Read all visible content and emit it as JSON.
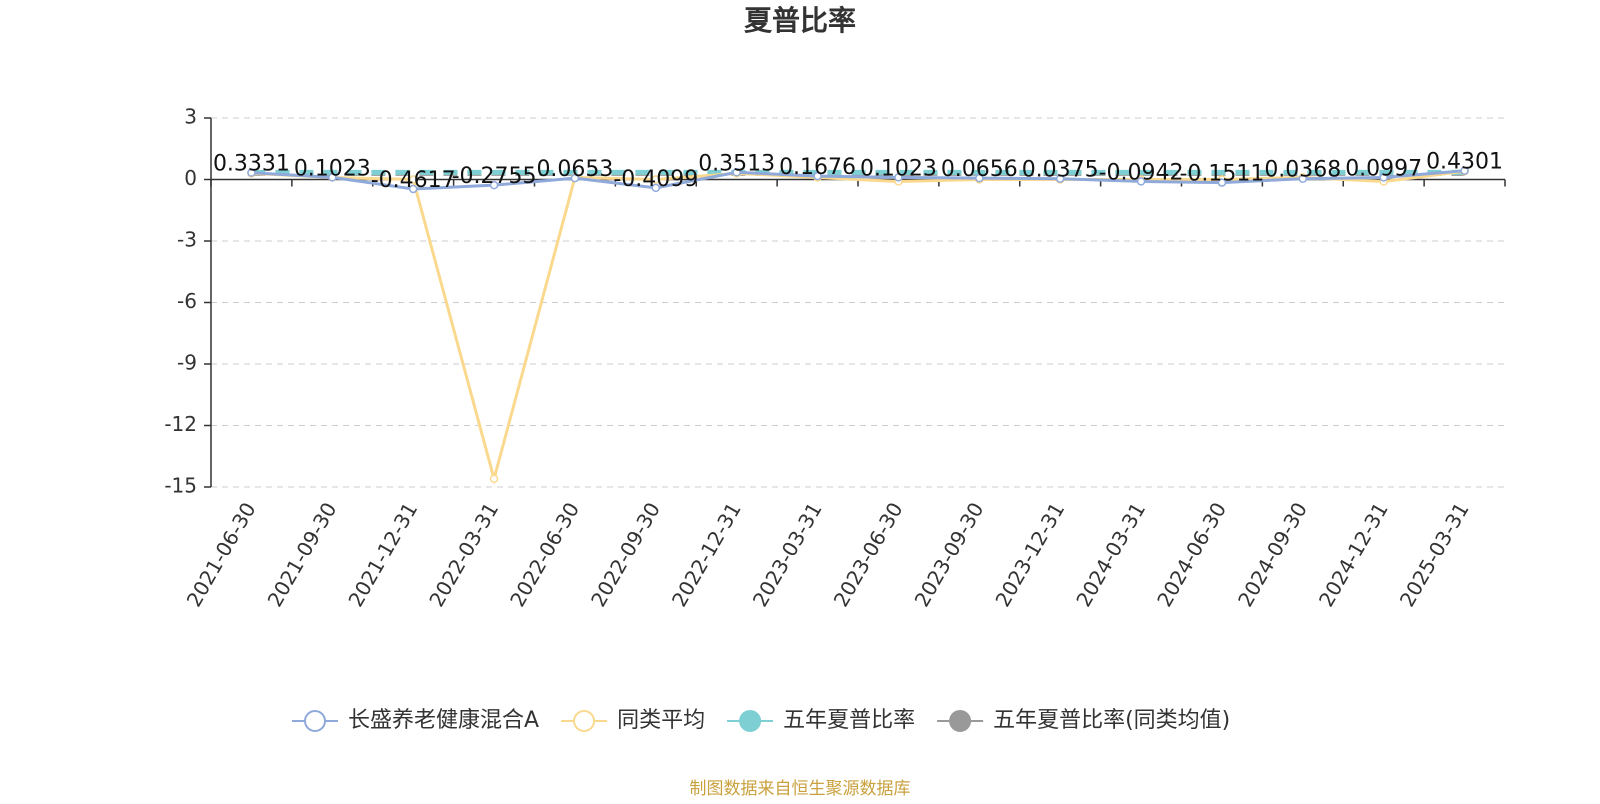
{
  "chart_data": {
    "type": "line",
    "title": "夏普比率",
    "categories": [
      "2021-06-30",
      "2021-09-30",
      "2021-12-31",
      "2022-03-31",
      "2022-06-30",
      "2022-09-30",
      "2022-12-31",
      "2023-03-31",
      "2023-06-30",
      "2023-09-30",
      "2023-12-31",
      "2024-03-31",
      "2024-06-30",
      "2024-09-30",
      "2024-12-31",
      "2025-03-31"
    ],
    "series": [
      {
        "name": "长盛养老健康混合A",
        "color": "#8fa9db",
        "values": [
          0.3331,
          0.1023,
          -0.4617,
          -0.2755,
          0.0653,
          -0.4099,
          0.3513,
          0.1676,
          0.1023,
          0.0656,
          0.0375,
          -0.0942,
          -0.1511,
          0.0368,
          0.0997,
          0.4301
        ]
      },
      {
        "name": "同类平均",
        "color": "#fad98f",
        "values": [
          0.3,
          0.1,
          0,
          -14.6,
          0.1,
          0,
          0.3,
          0.1,
          -0.1,
          0,
          0,
          0,
          0,
          0.1,
          -0.1,
          0.4
        ]
      },
      {
        "name": "五年夏普比率",
        "color": "#7ecfd4",
        "values": [
          0.35,
          0.35,
          0.35,
          0.35,
          0.35,
          0.35,
          0.35,
          0.35,
          0.35,
          0.35,
          0.35,
          0.35,
          0.35,
          0.35,
          0.35,
          0.35
        ]
      },
      {
        "name": "五年夏普比率(同类均值)",
        "color": "#999999",
        "values": [
          0.3,
          0.3,
          0.3,
          0.3,
          0.3,
          0.3,
          0.3,
          0.3,
          0.3,
          0.3,
          0.3,
          0.3,
          0.3,
          0.3,
          0.3,
          0.3
        ]
      }
    ],
    "ylim": [
      -15,
      3
    ],
    "yticks": [
      3,
      0,
      -3,
      -6,
      -9,
      -12,
      -15
    ],
    "grid": true,
    "source": "制图数据来自恒生聚源数据库"
  }
}
